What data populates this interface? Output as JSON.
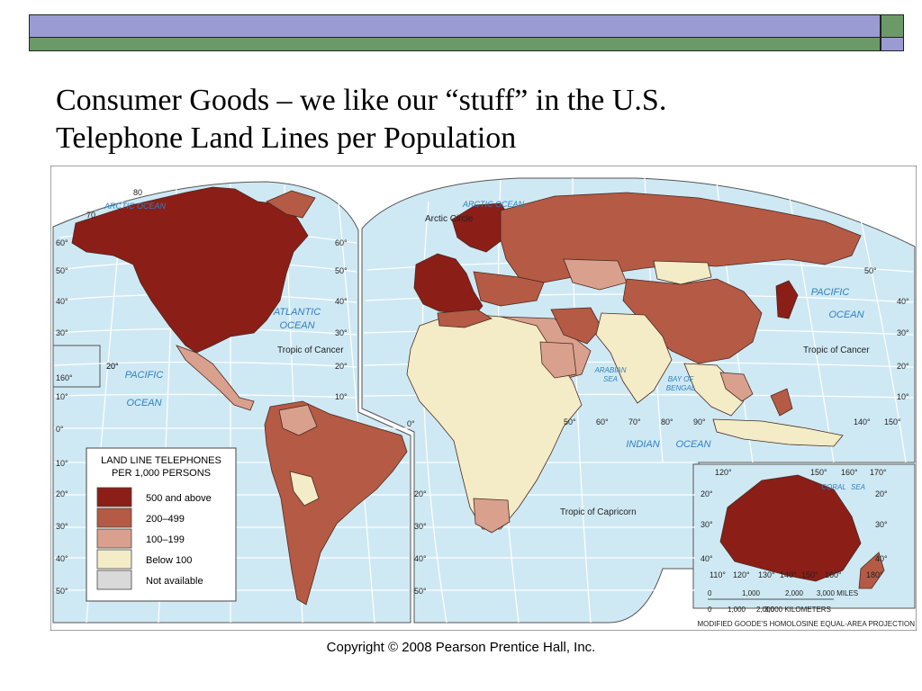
{
  "title": {
    "line1": "Consumer Goods – we like our “stuff” in the U.S.",
    "line2": "Telephone Land Lines per Population"
  },
  "map": {
    "legend": {
      "title_line1": "LAND LINE TELEPHONES",
      "title_line2": "PER 1,000 PERSONS",
      "items": [
        {
          "label": "500 and above",
          "color": "#8b1e17"
        },
        {
          "label": "200–499",
          "color": "#b55a44"
        },
        {
          "label": "100–199",
          "color": "#d9a08d"
        },
        {
          "label": "Below 100",
          "color": "#f3ecc6"
        },
        {
          "label": "Not available",
          "color": "#d9d9d9"
        }
      ]
    },
    "colors": {
      "ocean": "#cfe9f4",
      "grid": "#ffffff",
      "border": "#555555",
      "label": "#2f7fbf"
    },
    "ocean_labels": {
      "arctic_left": "ARCTIC OCEAN",
      "arctic_right": "ARCTIC OCEAN",
      "atlantic_1": "ATLANTIC",
      "atlantic_2": "OCEAN",
      "pacific_left_1": "PACIFIC",
      "pacific_left_2": "OCEAN",
      "pacific_right_1": "PACIFIC",
      "pacific_right_2": "OCEAN",
      "indian": "INDIAN",
      "indian_ocean": "OCEAN",
      "arabian_1": "ARABIAN",
      "arabian_2": "SEA",
      "bengal_1": "BAY OF",
      "bengal_2": "BENGAL",
      "coral": "CORAL",
      "coral_sea": "SEA"
    },
    "lines": {
      "arctic_circle": "Arctic Circle",
      "tropic_cancer_left": "Tropic of Cancer",
      "tropic_cancer_right": "Tropic of Cancer",
      "tropic_capricorn": "Tropic of Capricorn"
    },
    "lat_labels_left": [
      "80",
      "70",
      "60°",
      "50°",
      "40°",
      "30°",
      "20°",
      "10°",
      "0°",
      "10°",
      "20°",
      "30°",
      "40°",
      "50°"
    ],
    "lat_labels_mid": [
      "60°",
      "50°",
      "40°",
      "30°",
      "20°",
      "10°",
      "20°",
      "30°",
      "40°",
      "50°"
    ],
    "lat_labels_right": [
      "50°",
      "40°",
      "30°",
      "20°",
      "10°"
    ],
    "lon_labels_bottom": [
      "0°",
      "50°",
      "60°",
      "70°",
      "80°",
      "90°",
      "140°",
      "150°"
    ],
    "inset_labels": [
      "160°",
      "20°"
    ],
    "australia_labels": [
      "120°",
      "150°",
      "160°",
      "170°",
      "20°",
      "20°",
      "30°",
      "30°",
      "40°",
      "40°",
      "110°",
      "120°",
      "130°",
      "140°",
      "150°",
      "160°",
      "180°"
    ],
    "scale": {
      "miles": [
        "0",
        "1,000",
        "2,000",
        "3,000 MILES"
      ],
      "km": [
        "0",
        "1,000",
        "2,000",
        "3,000 KILOMETERS"
      ]
    },
    "projection": "MODIFIED GOODE'S HOMOLOSINE EQUAL-AREA PROJECTION"
  },
  "copyright": "Copyright © 2008 Pearson Prentice Hall, Inc."
}
